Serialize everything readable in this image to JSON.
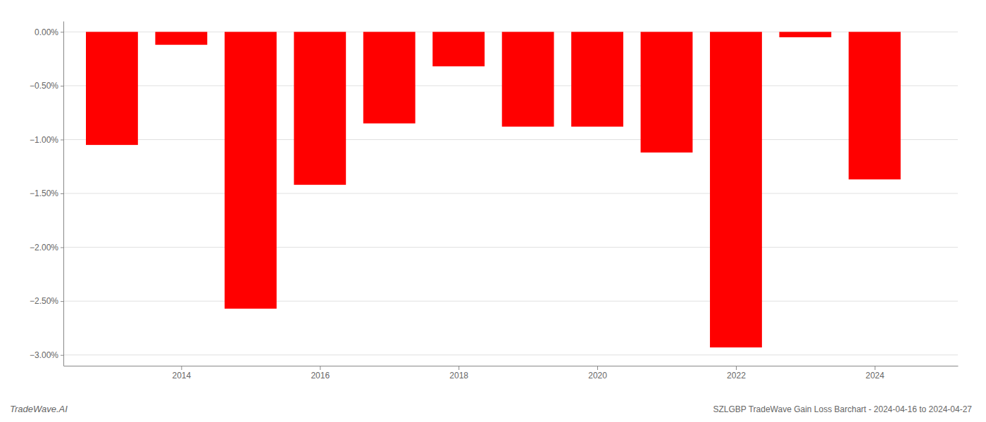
{
  "chart_data": {
    "type": "bar",
    "title": "SZLGBP TradeWave Gain Loss Barchart - 2024-04-16 to 2024-04-27",
    "annotations": [
      "TradeWave.AI"
    ],
    "x": [
      2013,
      2014,
      2015,
      2016,
      2017,
      2018,
      2019,
      2020,
      2021,
      2022,
      2023,
      2024
    ],
    "values": [
      -1.05,
      -0.12,
      -2.57,
      -1.42,
      -0.85,
      -0.32,
      -0.88,
      -0.88,
      -1.12,
      -2.93,
      -0.05,
      -1.37
    ],
    "color": "#ff0000",
    "xlim": [
      2012.3,
      2025.2
    ],
    "xticks": [
      2014,
      2016,
      2018,
      2020,
      2022,
      2024
    ],
    "ylim": [
      -3.1,
      0.1
    ],
    "yticks": [
      {
        "value": 0.0,
        "label": "0.00%"
      },
      {
        "value": -0.5,
        "label": "−0.50%"
      },
      {
        "value": -1.0,
        "label": "−1.00%"
      },
      {
        "value": -1.5,
        "label": "−1.50%"
      },
      {
        "value": -2.0,
        "label": "−2.00%"
      },
      {
        "value": -2.5,
        "label": "−2.50%"
      },
      {
        "value": -3.0,
        "label": "−3.00%"
      }
    ],
    "grid": true
  }
}
